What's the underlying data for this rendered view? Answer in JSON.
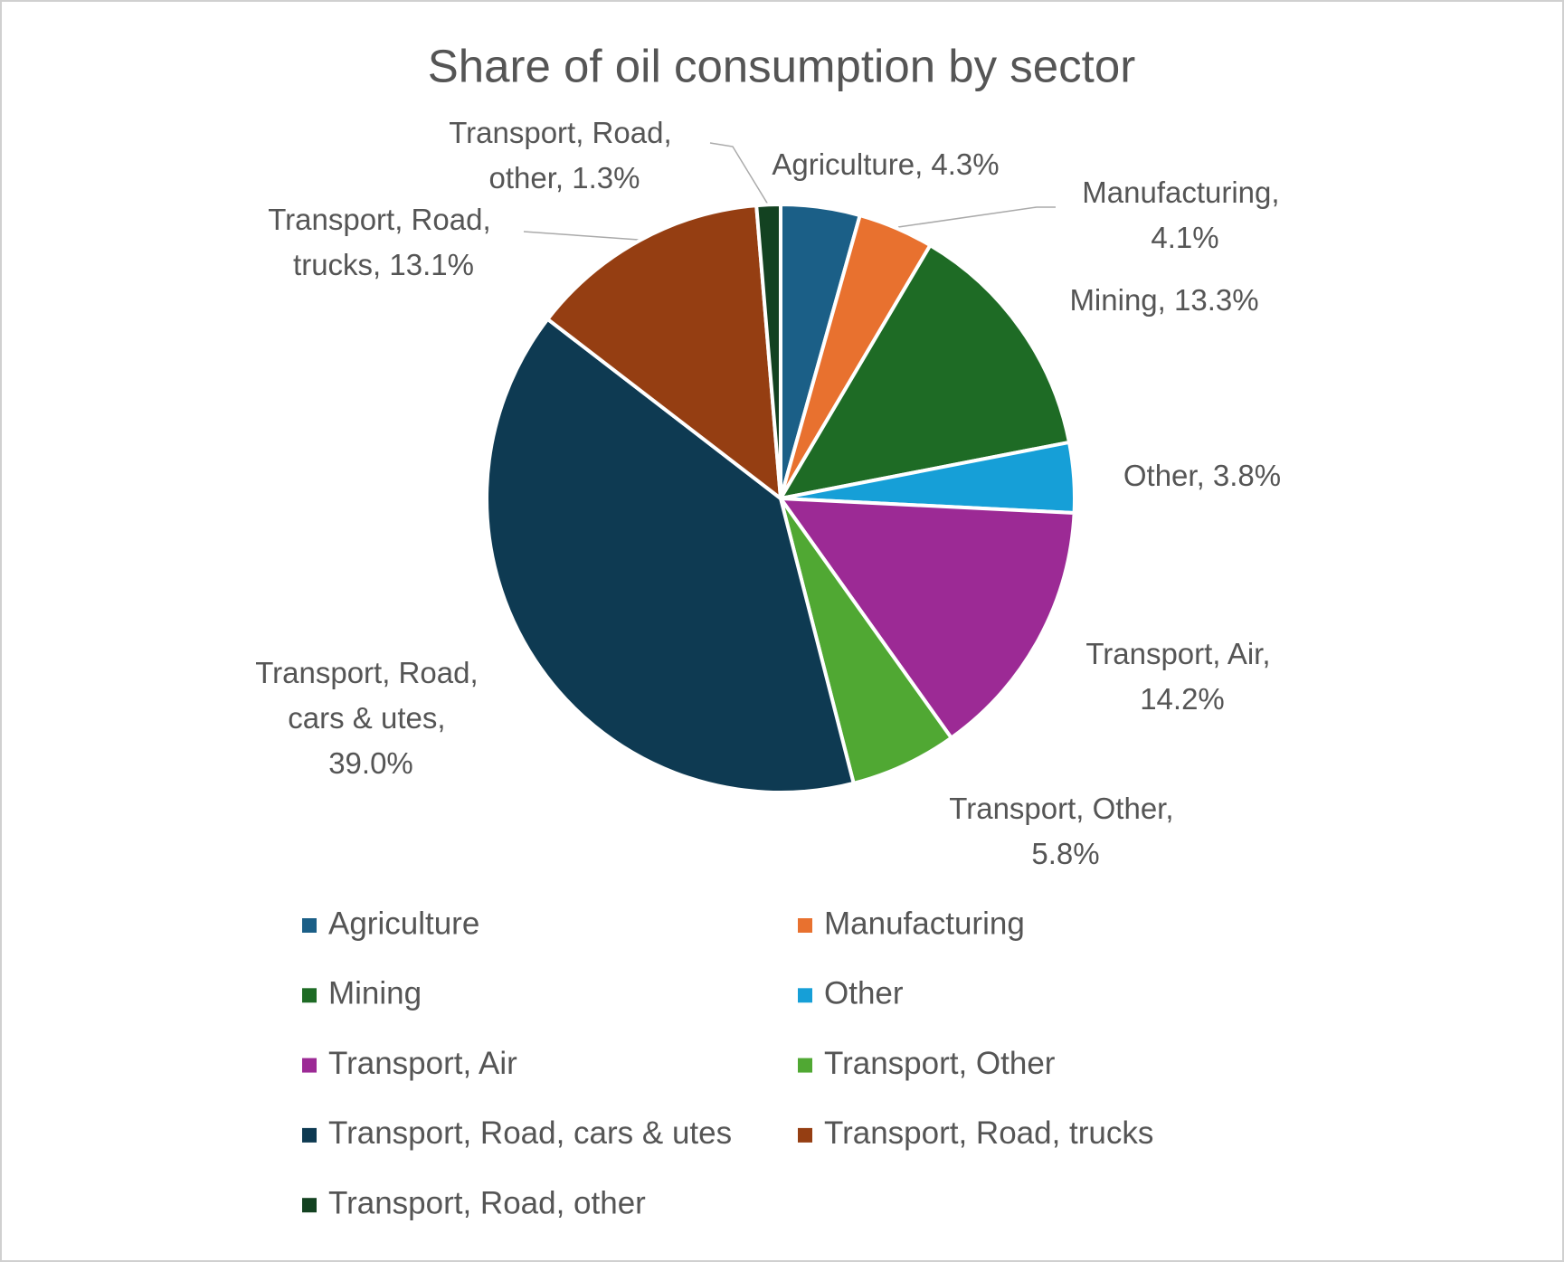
{
  "chart_data": {
    "type": "pie",
    "title": "Share of oil consumption by sector",
    "categories": [
      "Agriculture",
      "Manufacturing",
      "Mining",
      "Other",
      "Transport, Air",
      "Transport, Other",
      "Transport, Road, cars & utes",
      "Transport, Road, trucks",
      "Transport, Road, other"
    ],
    "values": [
      4.3,
      4.1,
      13.3,
      3.8,
      14.2,
      5.8,
      39.0,
      13.1,
      1.3
    ],
    "value_labels": [
      "Agriculture, 4.3%",
      "Manufacturing, 4.1%",
      "Mining, 13.3%",
      "Other, 3.8%",
      "Transport, Air, 14.2%",
      "Transport, Other, 5.8%",
      "Transport, Road, cars & utes, 39.0%",
      "Transport, Road, trucks, 13.1%",
      "Transport, Road, other, 1.3%"
    ],
    "colors": [
      "#1b5f87",
      "#e8712f",
      "#1e6b25",
      "#169fd7",
      "#9c2a95",
      "#50a833",
      "#0e3a52",
      "#953e12",
      "#134221"
    ],
    "legend": "bottom"
  }
}
